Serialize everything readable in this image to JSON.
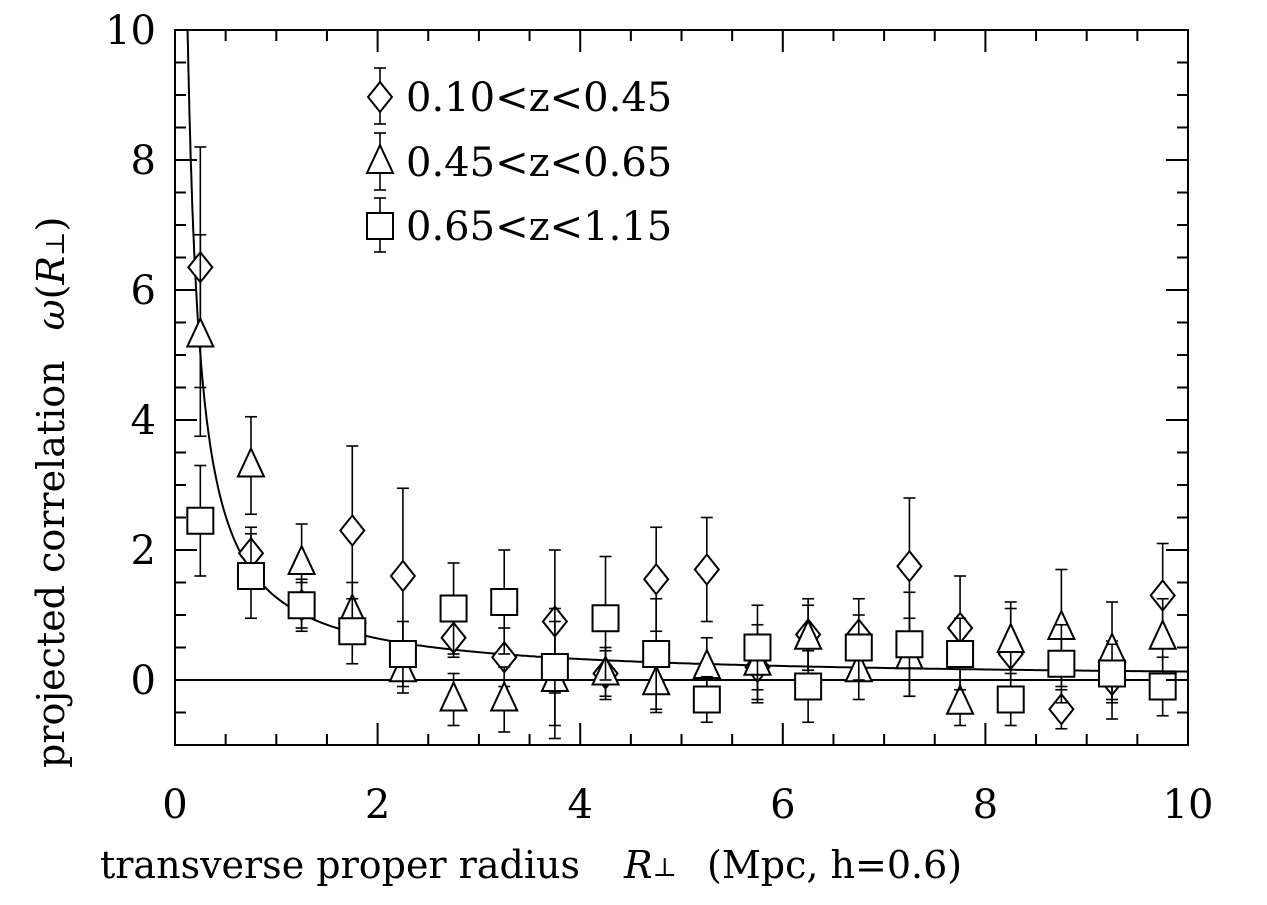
{
  "chart_data": {
    "type": "scatter",
    "xlabel": "transverse proper radius",
    "xlabel_symbol": "R",
    "xlabel_symbol_sub": "⊥",
    "xlabel_units": "(Mpc, h=0.6)",
    "ylabel": "projected correlation",
    "ylabel_symbol": "ω",
    "ylabel_arg": "R",
    "ylabel_arg_sub": "⊥",
    "xlim": [
      0,
      10
    ],
    "ylim": [
      -1,
      10
    ],
    "x_ticks": [
      0,
      2,
      4,
      6,
      8,
      10
    ],
    "y_ticks": [
      0,
      2,
      4,
      6,
      8,
      10
    ],
    "legend_position": "top-left",
    "zero_line": true,
    "series": [
      {
        "name": "0.10<z<0.45",
        "marker": "diamond",
        "x": [
          0.25,
          0.75,
          1.25,
          1.75,
          2.25,
          2.75,
          3.25,
          3.75,
          4.25,
          4.75,
          5.25,
          5.75,
          6.25,
          6.75,
          7.25,
          7.75,
          8.25,
          8.75,
          9.25,
          9.75
        ],
        "y": [
          6.35,
          1.95,
          1.15,
          2.3,
          1.6,
          0.65,
          0.35,
          0.9,
          0.1,
          1.55,
          1.7,
          0.2,
          0.7,
          0.7,
          1.75,
          0.8,
          0.4,
          -0.45,
          0.0,
          1.3
        ],
        "err": [
          1.85,
          0.4,
          0.35,
          1.3,
          1.35,
          0.3,
          0.45,
          1.1,
          0.35,
          0.8,
          0.8,
          0.5,
          0.55,
          0.55,
          1.05,
          0.8,
          0.7,
          0.3,
          0.6,
          0.8
        ]
      },
      {
        "name": "0.45<z<0.65",
        "marker": "triangle",
        "x": [
          0.25,
          0.75,
          1.25,
          1.75,
          2.25,
          2.75,
          3.25,
          3.75,
          4.25,
          4.75,
          5.25,
          5.75,
          6.25,
          6.75,
          7.25,
          7.75,
          8.25,
          8.75,
          9.25,
          9.75
        ],
        "y": [
          5.3,
          3.3,
          1.8,
          1.05,
          0.15,
          -0.3,
          -0.3,
          0.0,
          0.1,
          -0.05,
          0.2,
          0.25,
          0.65,
          0.15,
          0.35,
          -0.35,
          0.6,
          0.8,
          0.45,
          0.65
        ],
        "err": [
          1.55,
          0.75,
          0.6,
          0.45,
          0.35,
          0.4,
          0.5,
          0.9,
          0.4,
          0.45,
          0.45,
          0.6,
          0.5,
          0.45,
          0.6,
          0.35,
          0.6,
          0.9,
          0.75,
          0.6
        ]
      },
      {
        "name": "0.65<z<1.15",
        "marker": "square",
        "x": [
          0.25,
          0.75,
          1.25,
          1.75,
          2.25,
          2.75,
          3.25,
          3.75,
          4.25,
          4.75,
          5.25,
          5.75,
          6.25,
          6.75,
          7.25,
          7.75,
          8.25,
          8.75,
          9.25,
          9.75
        ],
        "y": [
          2.45,
          1.6,
          1.15,
          0.75,
          0.4,
          1.1,
          1.2,
          0.2,
          0.95,
          0.4,
          -0.3,
          0.5,
          -0.1,
          0.5,
          0.55,
          0.4,
          -0.3,
          0.25,
          0.1,
          -0.1
        ],
        "err": [
          0.85,
          0.65,
          0.4,
          0.5,
          0.5,
          0.7,
          0.8,
          0.9,
          0.95,
          0.85,
          0.35,
          0.65,
          0.55,
          0.5,
          0.8,
          0.55,
          0.4,
          0.6,
          0.45,
          0.45
        ]
      }
    ],
    "fit": {
      "form": "power_law",
      "amplitude": 1.27,
      "exponent": -0.99
    }
  }
}
